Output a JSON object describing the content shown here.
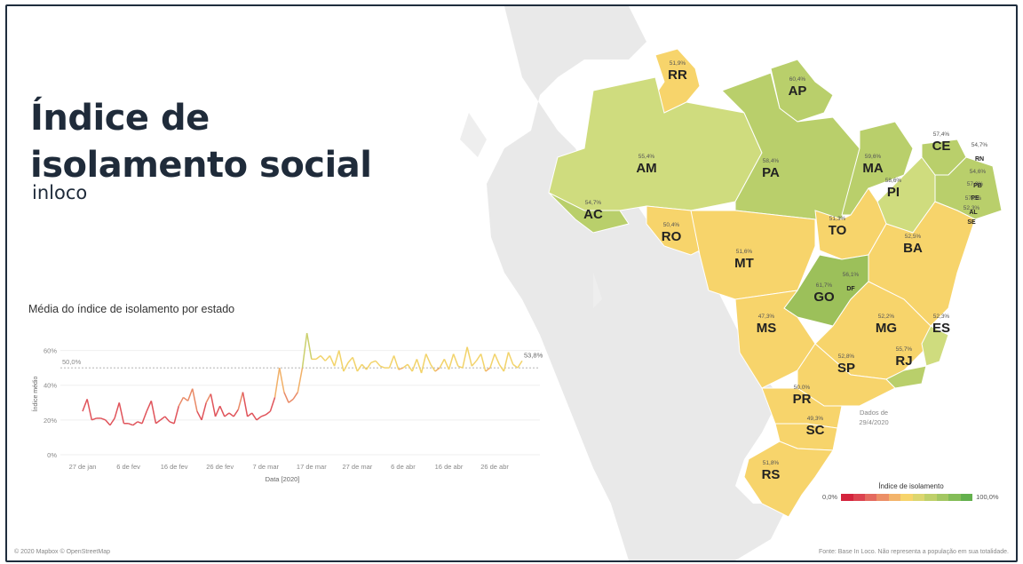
{
  "title": "Índice de\nisolamento social",
  "brand": "inloco",
  "chart_title": "Média do índice de isolamento por estado",
  "chart_data": {
    "type": "line",
    "xlabel": "Data [2020]",
    "ylabel": "Índice médio",
    "ylim": [
      0,
      70
    ],
    "yticks": [
      "0%",
      "20%",
      "40%",
      "60%"
    ],
    "xticks": [
      "27 de jan",
      "6 de fev",
      "16 de fev",
      "26 de fev",
      "7 de mar",
      "17 de mar",
      "27 de mar",
      "6 de abr",
      "16 de abr",
      "26 de abr"
    ],
    "reference_line": {
      "value": 50,
      "label": "50,0%"
    },
    "end_label": "53,8%",
    "series": [
      {
        "x_start": "2020-01-27",
        "values": [
          25,
          32,
          20,
          21,
          21,
          20,
          17,
          21,
          30,
          18,
          18,
          17,
          19,
          18,
          25,
          31,
          18,
          20,
          22,
          19,
          18,
          28,
          33,
          31,
          38,
          25,
          20,
          30,
          35,
          22,
          28,
          22,
          24,
          22,
          26,
          36,
          22,
          24,
          20,
          22,
          23,
          25,
          33,
          50,
          36,
          30,
          32,
          36,
          50,
          70,
          55,
          55,
          57,
          54,
          57,
          51,
          60,
          48,
          53,
          56,
          48,
          52,
          49,
          53,
          54,
          51,
          50,
          50,
          57,
          49,
          50,
          52,
          48,
          55,
          47,
          58,
          52,
          48,
          50,
          55,
          49,
          58,
          51,
          50,
          62,
          51,
          54,
          58,
          48,
          50,
          58,
          52,
          48,
          59,
          52,
          50,
          54
        ]
      }
    ]
  },
  "map": {
    "states": [
      {
        "abbr": "RR",
        "value": "51,9%"
      },
      {
        "abbr": "AP",
        "value": "60,4%"
      },
      {
        "abbr": "AM",
        "value": "55,4%"
      },
      {
        "abbr": "PA",
        "value": "58,4%"
      },
      {
        "abbr": "MA",
        "value": "59,6%"
      },
      {
        "abbr": "CE",
        "value": "57,4%"
      },
      {
        "abbr": "RN",
        "value": "54,7%"
      },
      {
        "abbr": "PI",
        "value": "58,6%"
      },
      {
        "abbr": "PB",
        "value": "54,6%"
      },
      {
        "abbr": "PE",
        "value": "57,9%"
      },
      {
        "abbr": "AL",
        "value": "57,6%"
      },
      {
        "abbr": "SE",
        "value": "52,3%"
      },
      {
        "abbr": "AC",
        "value": "54,7%"
      },
      {
        "abbr": "RO",
        "value": "50,4%"
      },
      {
        "abbr": "TO",
        "value": "51,3%"
      },
      {
        "abbr": "MT",
        "value": "51,6%"
      },
      {
        "abbr": "BA",
        "value": "52,5%"
      },
      {
        "abbr": "DF",
        "value": "56,1%"
      },
      {
        "abbr": "GO",
        "value": "61,7%"
      },
      {
        "abbr": "MG",
        "value": "52,2%"
      },
      {
        "abbr": "MS",
        "value": "47,3%"
      },
      {
        "abbr": "ES",
        "value": "52,3%"
      },
      {
        "abbr": "SP",
        "value": "52,8%"
      },
      {
        "abbr": "RJ",
        "value": "55,7%"
      },
      {
        "abbr": "PR",
        "value": "50,0%"
      },
      {
        "abbr": "SC",
        "value": "49,3%"
      },
      {
        "abbr": "RS",
        "value": "51,8%"
      }
    ],
    "colors": {
      "yellow": "#f7d46b",
      "light_green": "#cfdc7e",
      "green": "#b9cf6b",
      "dark_green": "#9cc05a"
    }
  },
  "legend": {
    "title": "Índice de isolamento",
    "min": "0,0%",
    "max": "100,0%",
    "colors": [
      "#d4243d",
      "#dc4350",
      "#e46a5f",
      "#ec8f66",
      "#f3b46b",
      "#f7d46b",
      "#dcd66f",
      "#bfd06a",
      "#a3c762",
      "#84bd58",
      "#63b04d"
    ]
  },
  "note": "Dados de\n29/4/2020",
  "copyright": "© 2020 Mapbox © OpenStreetMap",
  "source": "Fonte: Base In Loco. Não representa a população em sua totalidade."
}
